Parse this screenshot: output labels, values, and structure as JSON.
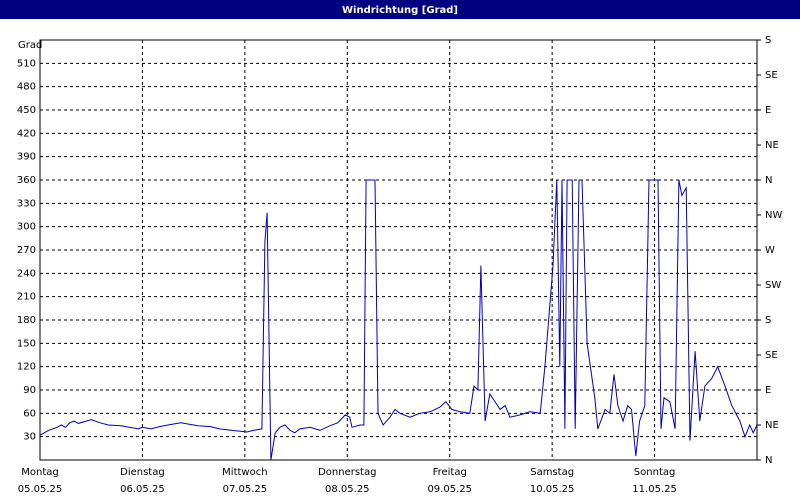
{
  "chart_data": {
    "type": "line",
    "title": "Windrichtung [Grad]",
    "y_label": "Grad",
    "xlim": [
      0,
      168
    ],
    "xticks": [
      {
        "value": 0,
        "label": "Montag"
      },
      {
        "value": 24,
        "label": "Dienstag"
      },
      {
        "value": 48,
        "label": "Mittwoch"
      },
      {
        "value": 72,
        "label": "Donnerstag"
      },
      {
        "value": 96,
        "label": "Freitag"
      },
      {
        "value": 120,
        "label": "Samstag"
      },
      {
        "value": 144,
        "label": "Sonntag"
      }
    ],
    "xtick_dates": [
      "05.05.25",
      "06.05.25",
      "07.05.25",
      "08.05.25",
      "09.05.25",
      "10.05.25",
      "11.05.25"
    ],
    "ylim": [
      0,
      540
    ],
    "yticks": [
      30,
      60,
      90,
      120,
      150,
      180,
      210,
      240,
      270,
      300,
      330,
      360,
      390,
      420,
      450,
      480,
      510
    ],
    "y2lim": [
      0,
      540
    ],
    "y2ticks": [
      {
        "value": 0,
        "label": "N"
      },
      {
        "value": 45,
        "label": "NE"
      },
      {
        "value": 90,
        "label": "E"
      },
      {
        "value": 135,
        "label": "SE"
      },
      {
        "value": 180,
        "label": "S"
      },
      {
        "value": 225,
        "label": "SW"
      },
      {
        "value": 270,
        "label": "W"
      },
      {
        "value": 315,
        "label": "NW"
      },
      {
        "value": 360,
        "label": "N"
      },
      {
        "value": 405,
        "label": "NE"
      },
      {
        "value": 450,
        "label": "E"
      },
      {
        "value": 495,
        "label": "SE"
      },
      {
        "value": 540,
        "label": "S"
      }
    ],
    "grid": true,
    "series": [
      {
        "color": "#0000c0",
        "x": [
          0,
          1,
          2,
          4,
          5,
          6,
          7,
          8,
          9,
          12,
          14,
          16,
          19,
          21,
          23,
          24,
          26,
          28,
          30,
          33,
          35,
          37,
          40,
          42,
          45,
          47,
          48.5,
          50,
          52.0,
          52.7,
          53.2,
          54.1,
          55.1,
          56.2,
          57.4,
          58.6,
          59.7,
          60.9,
          63.3,
          65.6,
          67.9,
          69.8,
          71.5,
          72.6,
          73.1,
          75.0,
          75.9,
          76.4,
          78.5,
          79.2,
          80.4,
          82.0,
          83.2,
          84.3,
          86.7,
          89.0,
          91.4,
          93.7,
          95.1,
          96.5,
          98.4,
          100.7,
          101.7,
          102.6,
          103.3,
          104.3,
          105.4,
          107.8,
          109.0,
          110.1,
          112.5,
          114.8,
          117.2,
          118.3,
          120.2,
          121.1,
          121.8,
          122.3,
          123.0,
          123.5,
          124.7,
          125.4,
          126.3,
          127.0,
          128.2,
          130.0,
          130.7,
          132.4,
          133.5,
          134.5,
          135.4,
          136.6,
          137.7,
          138.6,
          139.6,
          140.5,
          141.7,
          142.7,
          144.1,
          144.8,
          145.5,
          146.2,
          147.6,
          148.8,
          149.7,
          150.4,
          151.4,
          152.3,
          153.5,
          154.6,
          155.8,
          157.4,
          158.8,
          160.5,
          162.1,
          164.0,
          165.2,
          166.3,
          167.1,
          168.0
        ],
        "values": [
          32,
          35,
          38,
          42,
          45,
          42,
          48,
          50,
          47,
          52,
          48,
          45,
          44,
          42,
          40,
          42,
          40,
          43,
          45,
          48,
          46,
          44,
          43,
          40,
          38,
          37,
          36,
          38,
          40,
          280,
          318,
          0,
          35,
          42,
          45,
          38,
          35,
          40,
          42,
          38,
          44,
          48,
          58,
          55,
          42,
          45,
          45,
          360,
          360,
          60,
          45,
          55,
          65,
          60,
          55,
          60,
          62,
          68,
          75,
          65,
          62,
          60,
          95,
          90,
          250,
          50,
          85,
          65,
          70,
          55,
          58,
          62,
          60,
          120,
          250,
          360,
          120,
          360,
          40,
          360,
          360,
          40,
          360,
          360,
          150,
          80,
          40,
          65,
          60,
          110,
          70,
          50,
          70,
          65,
          5,
          50,
          70,
          360,
          360,
          360,
          40,
          80,
          75,
          40,
          360,
          340,
          350,
          25,
          140,
          50,
          95,
          105,
          120,
          95,
          70,
          50,
          30,
          45,
          35,
          45
        ]
      }
    ]
  }
}
